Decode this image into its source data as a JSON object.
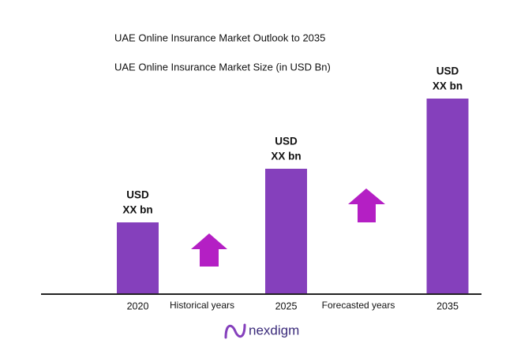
{
  "chart_data": {
    "type": "bar",
    "title": "UAE Online Insurance Market Outlook to 2035",
    "subtitle": "UAE Online Insurance Market Size (in USD Bn)",
    "categories": [
      "2020",
      "2025",
      "2035"
    ],
    "values": [
      90,
      158,
      247
    ],
    "color": "#8540bc",
    "data_labels": [
      [
        "USD",
        "XX bn"
      ],
      [
        "USD",
        "XX bn"
      ],
      [
        "USD",
        "XX bn"
      ]
    ],
    "annotations": [
      "Historical years",
      "Forecasted years"
    ],
    "brand": "nexdigm"
  }
}
